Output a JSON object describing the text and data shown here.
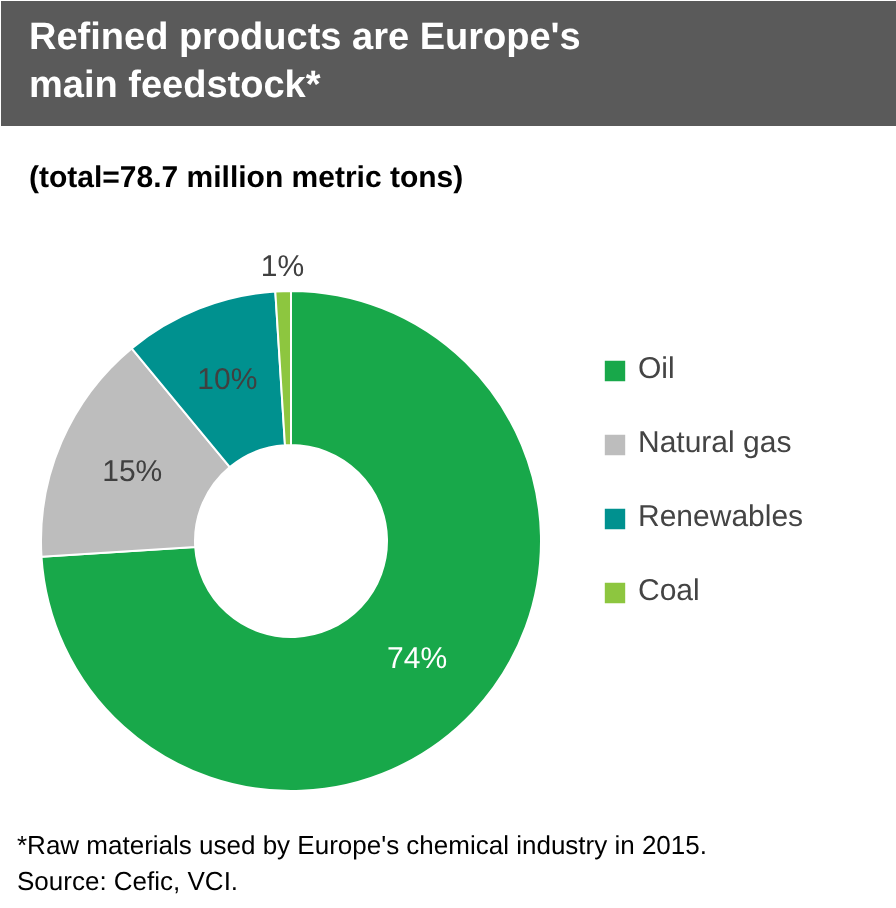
{
  "chart_data": {
    "type": "donut",
    "title": "Refined products are Europe's main feedstock*",
    "subtitle": "(total=78.7 million metric tons)",
    "categories": [
      "Oil",
      "Natural gas",
      "Renewables",
      "Coal"
    ],
    "values": [
      74,
      15,
      10,
      1
    ],
    "colors": [
      "#18a84a",
      "#bdbdbd",
      "#00918f",
      "#8dc63f"
    ],
    "value_labels": [
      "74%",
      "15%",
      "10%",
      "1%"
    ],
    "legend": "right",
    "annotations": [
      "*Raw materials used by Europe's chemical industry in 2015.",
      "Source: Cefic, VCI."
    ]
  }
}
